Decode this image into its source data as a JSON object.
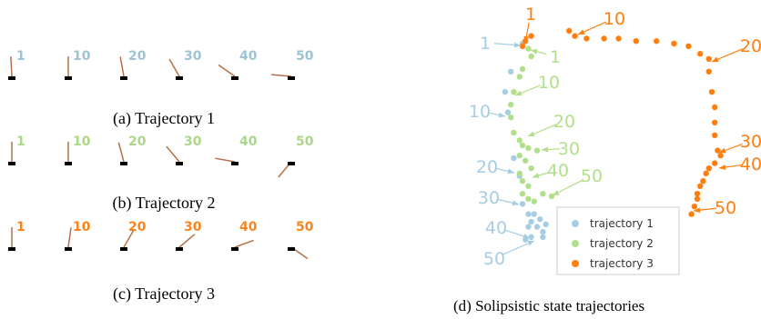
{
  "panels": [
    {
      "caption": "(a) Trajectory 1",
      "labels": [
        1,
        10,
        20,
        30,
        40,
        50
      ],
      "color": "#9ec3d3"
    },
    {
      "caption": "(b) Trajectory 2",
      "labels": [
        1,
        10,
        20,
        30,
        40,
        50
      ],
      "color": "#acd68a"
    },
    {
      "caption": "(c) Trajectory 3",
      "labels": [
        1,
        10,
        20,
        30,
        40,
        50
      ],
      "color": "#f7851c"
    }
  ],
  "chart_data": {
    "type": "scatter",
    "caption": "(d) Solipsistic state trajectories",
    "xlim": [
      0,
      100
    ],
    "ylim": [
      0,
      100
    ],
    "legend": "lower right",
    "series": [
      {
        "name": "trajectory 1",
        "color": "#a6cee3",
        "annotations": [
          1,
          10,
          20,
          30,
          40,
          50
        ],
        "x": [
          20,
          16,
          14,
          15,
          17,
          19,
          20,
          22,
          23,
          25,
          27,
          23,
          21,
          26,
          28,
          22,
          24,
          27
        ],
        "y": [
          90,
          79,
          71,
          63,
          45,
          38,
          27,
          23,
          20,
          18,
          16,
          14,
          13,
          21,
          19,
          18,
          23,
          14
        ]
      },
      {
        "name": "trajectory 2",
        "color": "#b2df8a",
        "annotations": [
          1,
          10,
          20,
          30,
          40,
          50
        ],
        "x": [
          22,
          23,
          20,
          19,
          17,
          16,
          16,
          17,
          19,
          20,
          22,
          25,
          19,
          21,
          23,
          19,
          20,
          22,
          20,
          22,
          27,
          30,
          24
        ],
        "y": [
          88,
          85,
          80,
          77,
          71,
          66,
          61,
          55,
          52,
          50,
          49,
          48,
          46,
          44,
          41,
          39,
          36,
          34,
          31,
          29,
          31,
          30,
          28
        ]
      },
      {
        "name": "trajectory 3",
        "color": "#ff7f0e",
        "annotations": [
          1,
          10,
          20,
          30,
          40,
          50
        ],
        "x": [
          20,
          21,
          23,
          36,
          38,
          42,
          48,
          53,
          59,
          66,
          72,
          77,
          81,
          84,
          84,
          85,
          86,
          86,
          86,
          87,
          88,
          86,
          84,
          83,
          82,
          81,
          80,
          80,
          79,
          78
        ],
        "y": [
          89,
          91,
          93,
          95,
          93,
          92,
          92,
          92,
          91,
          91,
          90,
          89,
          86,
          84,
          79,
          71,
          65,
          59,
          54,
          48,
          46,
          43,
          41,
          39,
          36,
          34,
          31,
          29,
          26,
          23
        ]
      }
    ]
  }
}
